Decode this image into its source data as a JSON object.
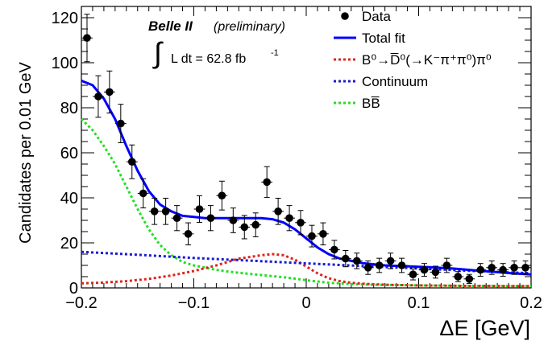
{
  "chart_data": {
    "type": "scatter",
    "experiment": "Belle II",
    "status": "(preliminary)",
    "lumi_label": "L dt = 62.8 fb",
    "lumi_exp": "-1",
    "xlabel": "ΔE [GeV]",
    "ylabel": "Candidates per 0.01 GeV",
    "xlim": [
      -0.2,
      0.2
    ],
    "ylim": [
      0,
      125
    ],
    "xticks": [
      -0.2,
      -0.1,
      0,
      0.1,
      0.2
    ],
    "xtick_labels": [
      "−0.2",
      "−0.1",
      "0",
      "0.1",
      "0.2"
    ],
    "yticks": [
      0,
      20,
      40,
      60,
      80,
      100,
      120
    ],
    "ytick_labels": [
      "0",
      "20",
      "40",
      "60",
      "80",
      "100",
      "120"
    ],
    "legend_position": "top-right",
    "legend": [
      {
        "label": "Data",
        "marker": "point",
        "color": "#000000"
      },
      {
        "label": "Total fit",
        "marker": "solid",
        "color": "#0000ff"
      },
      {
        "label": "B⁰→D̅⁰(→K⁻π⁺π⁰)π⁰",
        "marker": "dotted",
        "color": "#e0241b"
      },
      {
        "label": "Continuum",
        "marker": "dotted",
        "color": "#1a1ad6"
      },
      {
        "label": "BB̅",
        "marker": "dotted",
        "color": "#22e022"
      }
    ],
    "data": {
      "x": [
        -0.195,
        -0.185,
        -0.175,
        -0.165,
        -0.155,
        -0.145,
        -0.135,
        -0.125,
        -0.115,
        -0.105,
        -0.095,
        -0.085,
        -0.075,
        -0.065,
        -0.055,
        -0.045,
        -0.035,
        -0.025,
        -0.015,
        -0.005,
        0.005,
        0.015,
        0.025,
        0.035,
        0.045,
        0.055,
        0.065,
        0.075,
        0.085,
        0.095,
        0.105,
        0.115,
        0.125,
        0.135,
        0.145,
        0.155,
        0.165,
        0.175,
        0.185,
        0.195
      ],
      "y": [
        111,
        85,
        87,
        73,
        56,
        42,
        34,
        34,
        31,
        24,
        35,
        31,
        41,
        30,
        27,
        28,
        47,
        34,
        31,
        29,
        23,
        24,
        17,
        13,
        12,
        9,
        10,
        12,
        10,
        6,
        8,
        7,
        10,
        5,
        4,
        8,
        9,
        8,
        9,
        9
      ]
    },
    "series": [
      {
        "name": "Total fit",
        "color": "#0000ff",
        "style": "solid",
        "x": [
          -0.2,
          -0.19,
          -0.18,
          -0.17,
          -0.16,
          -0.15,
          -0.14,
          -0.13,
          -0.12,
          -0.11,
          -0.1,
          -0.09,
          -0.08,
          -0.07,
          -0.06,
          -0.05,
          -0.04,
          -0.03,
          -0.02,
          -0.01,
          0,
          0.01,
          0.02,
          0.03,
          0.04,
          0.05,
          0.06,
          0.07,
          0.08,
          0.09,
          0.1,
          0.11,
          0.12,
          0.13,
          0.14,
          0.15,
          0.16,
          0.17,
          0.18,
          0.19,
          0.2
        ],
        "y": [
          92,
          90,
          84,
          75,
          63,
          52,
          43,
          37,
          34,
          32,
          31.5,
          31,
          31,
          31,
          31,
          31,
          31,
          30.5,
          29,
          26,
          22,
          18,
          15,
          13,
          12,
          11,
          10.5,
          10,
          9.8,
          9.6,
          9.4,
          9.2,
          8.9,
          8.6,
          8.2,
          7.8,
          7.4,
          7,
          6.6,
          6.3,
          6
        ]
      },
      {
        "name": "B⁰→D̅⁰(→K⁻π⁺π⁰)π⁰",
        "color": "#e0241b",
        "style": "dotted",
        "x": [
          -0.2,
          -0.18,
          -0.16,
          -0.14,
          -0.12,
          -0.1,
          -0.08,
          -0.06,
          -0.04,
          -0.03,
          -0.02,
          -0.01,
          0,
          0.01,
          0.02,
          0.03,
          0.04,
          0.05,
          0.06,
          0.07,
          0.08,
          0.1,
          0.12,
          0.14,
          0.16,
          0.18,
          0.2
        ],
        "y": [
          2,
          2.4,
          3,
          4,
          5.5,
          7.5,
          10,
          13,
          14.5,
          15,
          14.5,
          12.5,
          9.5,
          6.5,
          4.3,
          3,
          2.3,
          1.9,
          1.6,
          1.4,
          1.3,
          1.1,
          1,
          0.9,
          0.9,
          0.8,
          0.8
        ]
      },
      {
        "name": "Continuum",
        "color": "#1a1ad6",
        "style": "dotted",
        "x": [
          -0.2,
          -0.15,
          -0.1,
          -0.05,
          0,
          0.05,
          0.1,
          0.15,
          0.2
        ],
        "y": [
          16,
          14.7,
          13.3,
          12.1,
          10.9,
          9.7,
          8.6,
          7.5,
          6.5
        ]
      },
      {
        "name": "BB̅",
        "color": "#22e022",
        "style": "dotted",
        "x": [
          -0.2,
          -0.19,
          -0.18,
          -0.17,
          -0.16,
          -0.15,
          -0.14,
          -0.13,
          -0.12,
          -0.11,
          -0.1,
          -0.09,
          -0.08,
          -0.07,
          -0.06,
          -0.05,
          -0.04,
          -0.03,
          -0.02,
          -0.01,
          0,
          0.02,
          0.04,
          0.06,
          0.1,
          0.15,
          0.2
        ],
        "y": [
          75,
          70,
          63,
          55,
          45,
          35,
          26,
          19,
          14.5,
          11.5,
          10,
          9,
          8,
          7.3,
          6.7,
          6.2,
          5.7,
          5.2,
          4.7,
          4.1,
          3.4,
          2.3,
          1.7,
          1.4,
          1.1,
          0.9,
          0.8
        ]
      }
    ]
  }
}
